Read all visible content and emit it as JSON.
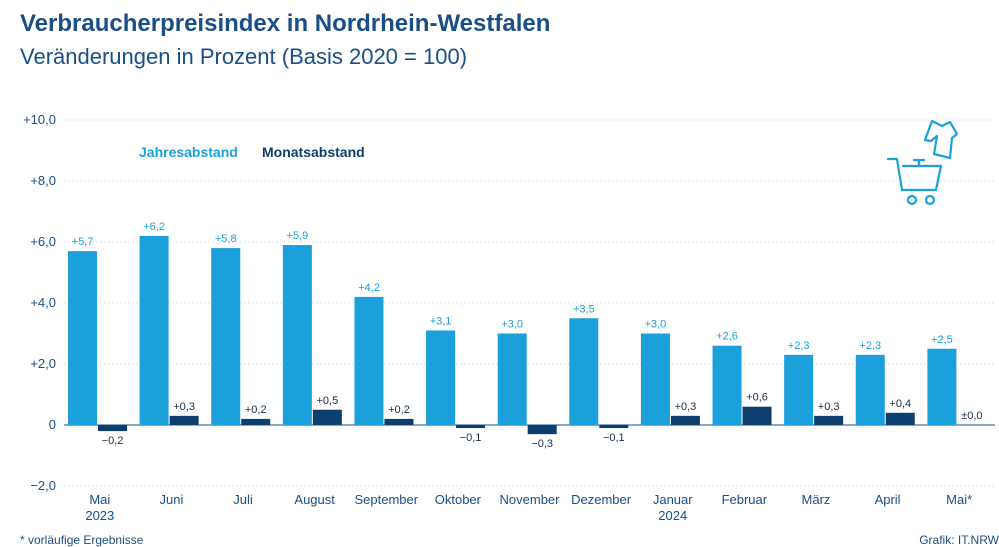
{
  "header": {
    "title": "Verbraucherpreisindex in Nordrhein-Westfalen",
    "subtitle": "Veränderungen in Prozent (Basis 2020 = 100)"
  },
  "footer": {
    "footnote": "* vorläufige Ergebnisse",
    "source": "Grafik: IT.NRW"
  },
  "chart_data": {
    "type": "bar",
    "title": "Verbraucherpreisindex in Nordrhein-Westfalen",
    "subtitle": "Veränderungen in Prozent (Basis 2020 = 100)",
    "categories": [
      [
        "Mai",
        "2023"
      ],
      [
        "Juni"
      ],
      [
        "Juli"
      ],
      [
        "August"
      ],
      [
        "September"
      ],
      [
        "Oktober"
      ],
      [
        "November"
      ],
      [
        "Dezember"
      ],
      [
        "Januar",
        "2024"
      ],
      [
        "Februar"
      ],
      [
        "März"
      ],
      [
        "April"
      ],
      [
        "Mai*"
      ]
    ],
    "series": [
      {
        "name": "Jahresabstand",
        "color": "#1ba0dc",
        "values": [
          5.7,
          6.2,
          5.8,
          5.9,
          4.2,
          3.1,
          3.0,
          3.5,
          3.0,
          2.6,
          2.3,
          2.3,
          2.5
        ],
        "labels": [
          "+5,7",
          "+6,2",
          "+5,8",
          "+5,9",
          "+4,2",
          "+3,1",
          "+3,0",
          "+3,5",
          "+3,0",
          "+2,6",
          "+2,3",
          "+2,3",
          "+2,5"
        ]
      },
      {
        "name": "Monatsabstand",
        "color": "#0c3f6e",
        "values": [
          -0.2,
          0.3,
          0.2,
          0.5,
          0.2,
          -0.1,
          -0.3,
          -0.1,
          0.3,
          0.6,
          0.3,
          0.4,
          0.0
        ],
        "labels": [
          "−0,2",
          "+0,3",
          "+0,2",
          "+0,5",
          "+0,2",
          "−0,1",
          "−0,3",
          "−0,1",
          "+0,3",
          "+0,6",
          "+0,3",
          "+0,4",
          "±0,0"
        ]
      }
    ],
    "yticks": [
      "+10,0",
      "+8,0",
      "+6,0",
      "+4,0",
      "+2,0",
      "0",
      "−2,0"
    ],
    "ylim": [
      -2.0,
      10.0
    ],
    "grid": true,
    "legend": "top-left",
    "icon": "shopping-cart-with-shirt-icon"
  }
}
